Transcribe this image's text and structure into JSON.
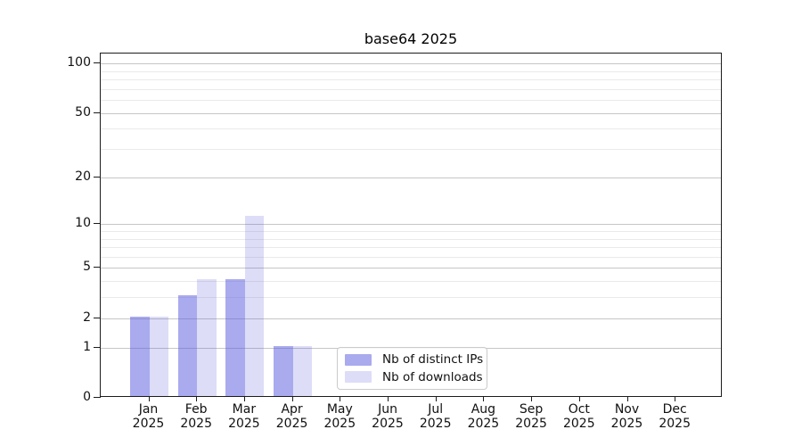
{
  "figure": {
    "background": "#ffffff"
  },
  "chart_data": {
    "type": "bar",
    "title": "base64 2025",
    "categories": [
      "Jan",
      "Feb",
      "Mar",
      "Apr",
      "May",
      "Jun",
      "Jul",
      "Aug",
      "Sep",
      "Oct",
      "Nov",
      "Dec"
    ],
    "year_label": "2025",
    "series": [
      {
        "name": "Nb of distinct IPs",
        "color": "rgba(85,85,221,0.5)",
        "legend_color": "#aaaaee",
        "values": [
          2,
          3,
          4,
          1,
          0,
          0,
          0,
          0,
          0,
          0,
          0,
          0
        ]
      },
      {
        "name": "Nb of downloads",
        "color": "rgba(85,85,221,0.2)",
        "legend_color": "#ddddf8",
        "values": [
          2,
          4,
          11,
          1,
          0,
          0,
          0,
          0,
          0,
          0,
          0,
          0
        ]
      }
    ],
    "xlabel": "",
    "ylabel": "",
    "y_scale": "log10(value+1)",
    "y_major_ticks": [
      0,
      1,
      2,
      5,
      10,
      20,
      50,
      100
    ],
    "y_minor_gridlines": [
      3,
      4,
      6,
      7,
      8,
      9,
      30,
      40,
      60,
      70,
      80,
      90
    ],
    "ylim": [
      0,
      115
    ],
    "grid": {
      "major_color": "#c6c6c6",
      "minor_color": "#eaeaea",
      "visible": true
    },
    "legend": {
      "position": "lower-center",
      "border_color": "#cbcbcb"
    }
  }
}
